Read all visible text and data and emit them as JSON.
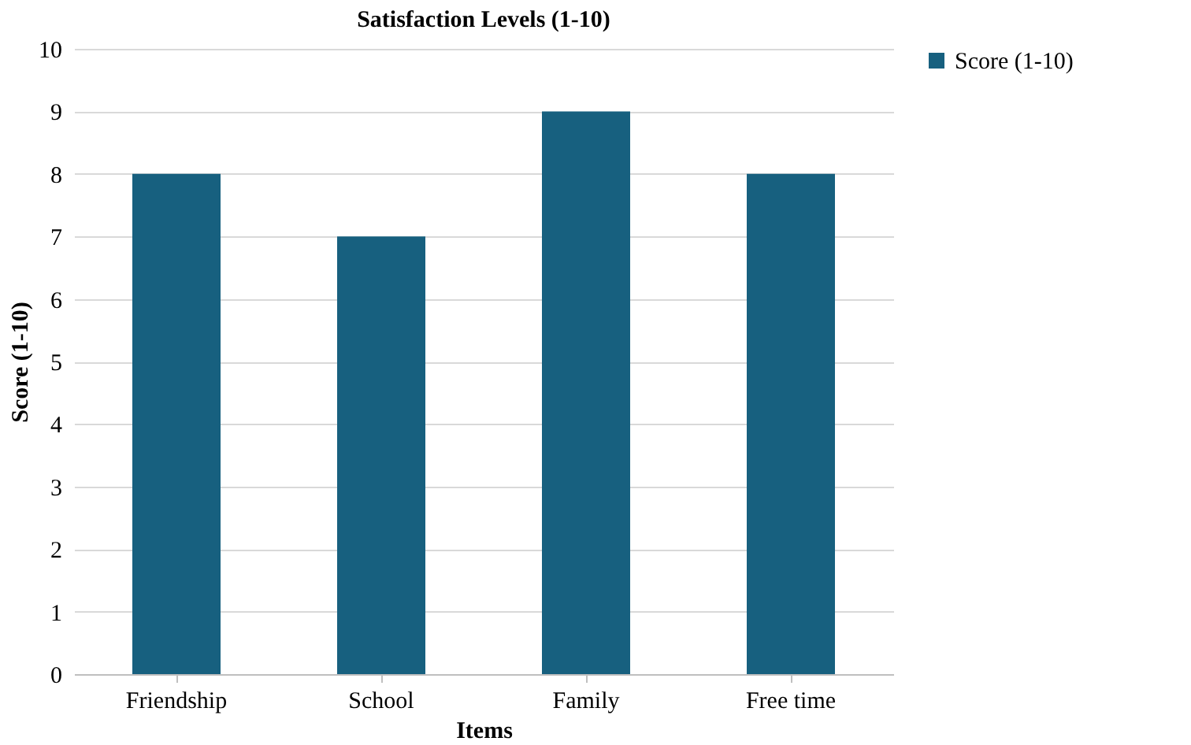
{
  "chart_data": {
    "type": "bar",
    "title": "Satisfaction Levels (1-10)",
    "xlabel": "Items",
    "ylabel": "Score (1-10)",
    "categories": [
      "Friendship",
      "School",
      "Family",
      "Free time"
    ],
    "series": [
      {
        "name": "Score (1-10)",
        "color": "#17607f",
        "values": [
          8,
          7,
          9,
          8
        ]
      }
    ],
    "ylim": [
      0,
      10
    ],
    "yticks": [
      0,
      1,
      2,
      3,
      4,
      5,
      6,
      7,
      8,
      9,
      10
    ],
    "grid": "y",
    "legend": "right"
  }
}
